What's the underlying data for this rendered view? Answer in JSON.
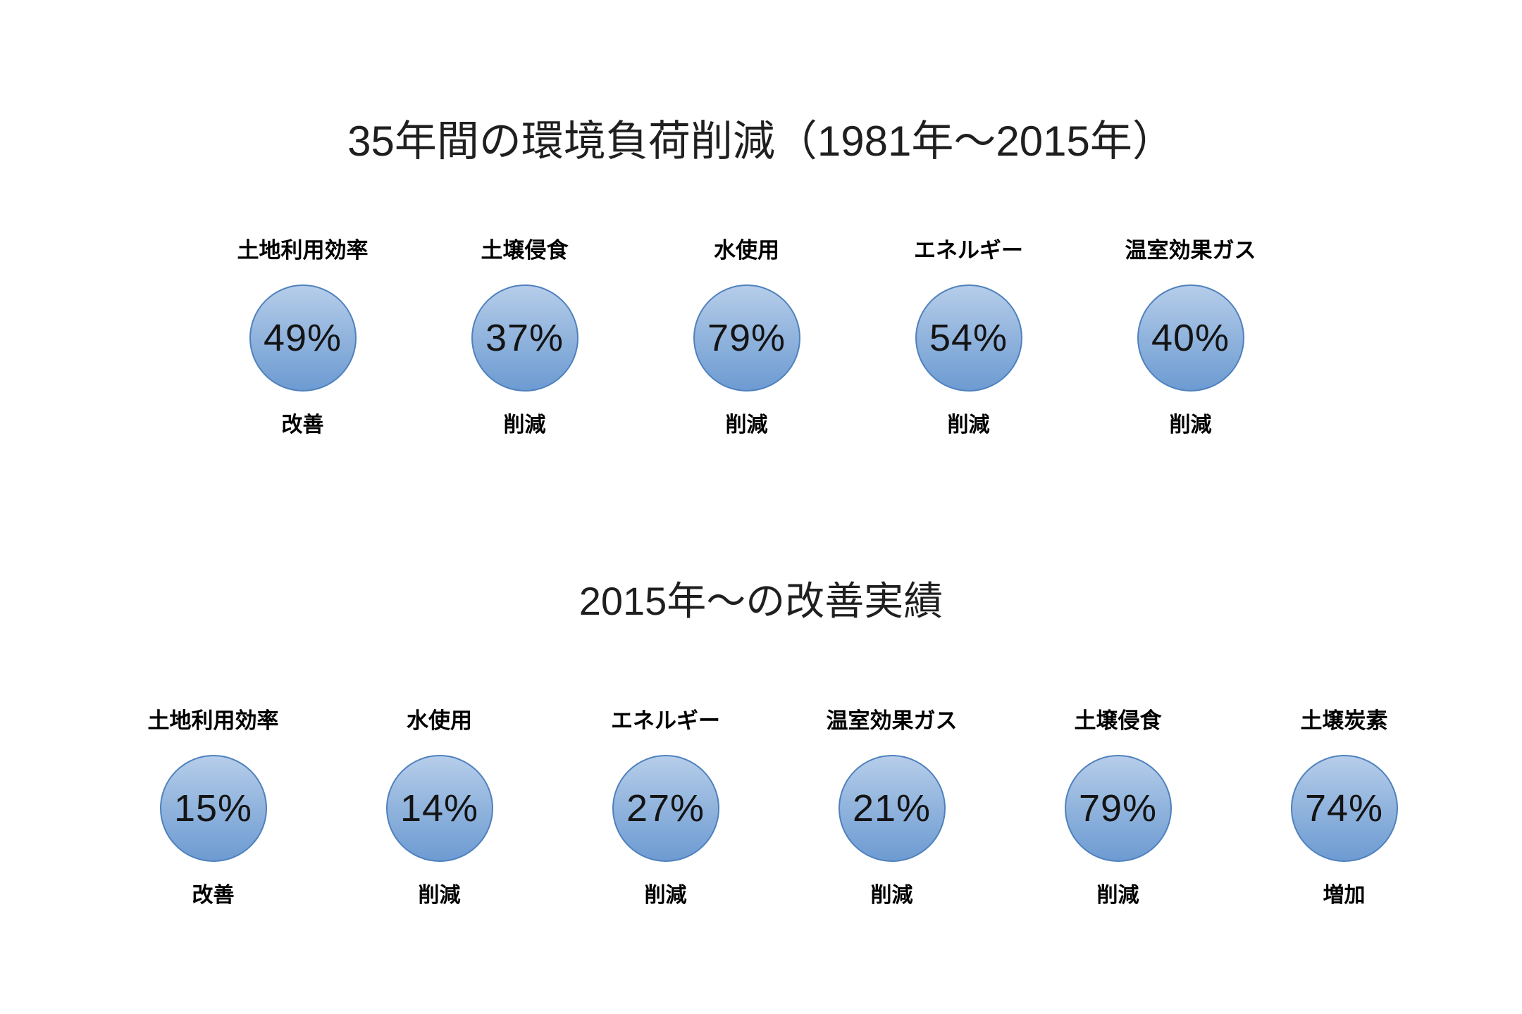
{
  "page": {
    "background": "#ffffff"
  },
  "colors": {
    "circle_gradient_top": "#b6cdea",
    "circle_gradient_bottom": "#6d9bd2",
    "circle_border": "#4f81bd",
    "value_text": "#141414",
    "label_text": "#000000",
    "title_text": "#1f1f1f"
  },
  "sections": [
    {
      "title": "35年間の環境負荷削減（1981年～2015年）",
      "items": [
        {
          "category": "土地利用効率",
          "value": "49%",
          "status": "改善"
        },
        {
          "category": "土壌侵食",
          "value": "37%",
          "status": "削減"
        },
        {
          "category": "水使用",
          "value": "79%",
          "status": "削減"
        },
        {
          "category": "エネルギー",
          "value": "54%",
          "status": "削減"
        },
        {
          "category": "温室効果ガス",
          "value": "40%",
          "status": "削減"
        }
      ]
    },
    {
      "title": "2015年～の改善実績",
      "items": [
        {
          "category": "土地利用効率",
          "value": "15%",
          "status": "改善"
        },
        {
          "category": "水使用",
          "value": "14%",
          "status": "削減"
        },
        {
          "category": "エネルギー",
          "value": "27%",
          "status": "削減"
        },
        {
          "category": "温室効果ガス",
          "value": "21%",
          "status": "削減"
        },
        {
          "category": "土壌侵食",
          "value": "79%",
          "status": "削減"
        },
        {
          "category": "土壌炭素",
          "value": "74%",
          "status": "増加"
        }
      ]
    }
  ],
  "chart_data": [
    {
      "type": "table",
      "title": "35年間の環境負荷削減（1981年～2015年）",
      "categories": [
        "土地利用効率",
        "土壌侵食",
        "水使用",
        "エネルギー",
        "温室効果ガス"
      ],
      "values": [
        49,
        37,
        79,
        54,
        40
      ],
      "unit": "%",
      "directions": [
        "改善",
        "削減",
        "削減",
        "削減",
        "削減"
      ]
    },
    {
      "type": "table",
      "title": "2015年～の改善実績",
      "categories": [
        "土地利用効率",
        "水使用",
        "エネルギー",
        "温室効果ガス",
        "土壌侵食",
        "土壌炭素"
      ],
      "values": [
        15,
        14,
        27,
        21,
        79,
        74
      ],
      "unit": "%",
      "directions": [
        "改善",
        "削減",
        "削減",
        "削減",
        "削減",
        "増加"
      ]
    }
  ]
}
